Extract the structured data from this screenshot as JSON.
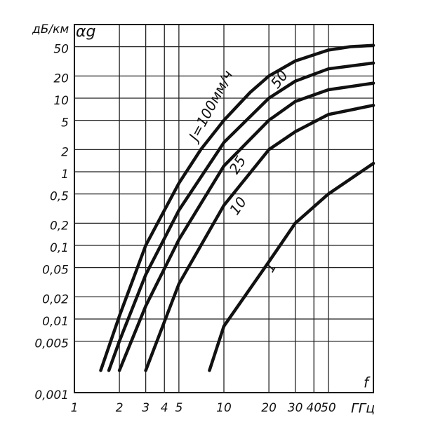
{
  "chart_data": {
    "type": "line",
    "y_label": "дБ/км",
    "y_symbol": "αg",
    "x_label": "f",
    "x_unit": "ГГц",
    "xlog": true,
    "ylog": true,
    "grid": true,
    "xlim": [
      1,
      100
    ],
    "ylim": [
      0.001,
      100
    ],
    "xticks": [
      1,
      2,
      3,
      4,
      5,
      10,
      20,
      30,
      40,
      50
    ],
    "yticks": [
      {
        "value": 0.001,
        "label": "0,001"
      },
      {
        "value": 0.005,
        "label": "0,005"
      },
      {
        "value": 0.01,
        "label": "0,01"
      },
      {
        "value": 0.02,
        "label": "0,02"
      },
      {
        "value": 0.05,
        "label": "0,05"
      },
      {
        "value": 0.1,
        "label": "0,1"
      },
      {
        "value": 0.2,
        "label": "0,2"
      },
      {
        "value": 0.5,
        "label": "0,5"
      },
      1,
      2,
      5,
      10,
      20,
      50
    ],
    "series": [
      {
        "name": "J=100мм/ч",
        "color": "#111",
        "x": [
          1.5,
          2,
          3,
          4,
          5,
          7,
          10,
          15,
          20,
          30,
          50,
          70,
          100
        ],
        "values": [
          0.002,
          0.011,
          0.1,
          0.3,
          0.7,
          2,
          5,
          12,
          20,
          32,
          45,
          50,
          52
        ]
      },
      {
        "name": "50",
        "color": "#111",
        "x": [
          1.7,
          2,
          3,
          5,
          10,
          20,
          30,
          50,
          100
        ],
        "values": [
          0.002,
          0.005,
          0.04,
          0.3,
          2.5,
          10,
          17,
          25,
          30
        ]
      },
      {
        "name": "25",
        "color": "#111",
        "x": [
          2,
          3,
          5,
          10,
          20,
          30,
          50,
          100
        ],
        "values": [
          0.002,
          0.015,
          0.12,
          1.2,
          5,
          9,
          13,
          16
        ]
      },
      {
        "name": "10",
        "color": "#111",
        "x": [
          3,
          5,
          10,
          20,
          30,
          50,
          100
        ],
        "values": [
          0.002,
          0.03,
          0.35,
          2,
          3.5,
          6,
          8
        ]
      },
      {
        "name": "1",
        "color": "#111",
        "x": [
          8,
          10,
          20,
          30,
          50,
          100
        ],
        "values": [
          0.002,
          0.008,
          0.06,
          0.2,
          0.5,
          1.3
        ]
      }
    ]
  }
}
